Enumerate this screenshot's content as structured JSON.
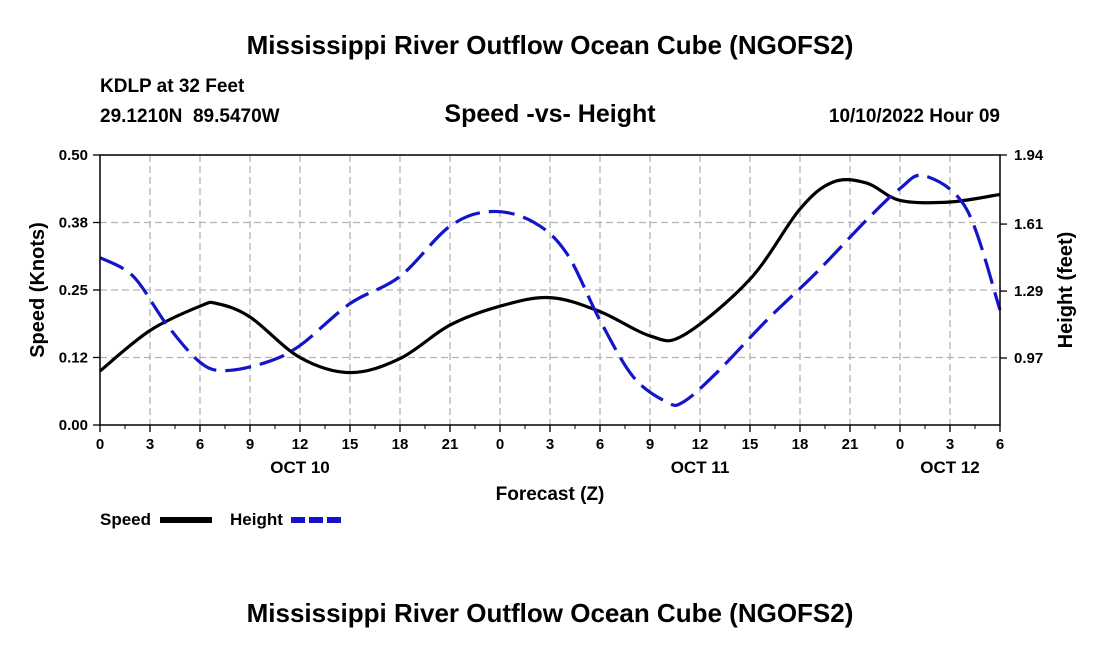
{
  "header": {
    "title_top": "Mississippi River Outflow Ocean Cube (NGOFS2)",
    "station": "KDLP at 32 Feet",
    "coordinates": "29.1210N  89.5470W",
    "subtitle": "Speed -vs- Height",
    "datetime": "10/10/2022 Hour 09",
    "title_bottom": "Mississippi River Outflow Ocean Cube (NGOFS2)"
  },
  "colors": {
    "speed": "#000000",
    "height": "#1414c8",
    "grid": "#b4b4b4"
  },
  "chart_data": {
    "type": "line",
    "title": "Speed -vs- Height",
    "xlabel": "Forecast (Z)",
    "ylabel": "Speed (Knots)",
    "y2label": "Height (feet)",
    "x_unit": "hours since 10/10/2022 00Z",
    "xlim": [
      0,
      54
    ],
    "ylim": [
      0,
      0.5
    ],
    "y2lim": [
      0.65,
      1.94
    ],
    "x_ticks": [
      0,
      3,
      6,
      9,
      12,
      15,
      18,
      21,
      24,
      27,
      30,
      33,
      36,
      39,
      42,
      45,
      48,
      51,
      54
    ],
    "x_tick_labels": [
      "0",
      "3",
      "6",
      "9",
      "12",
      "15",
      "18",
      "21",
      "0",
      "3",
      "6",
      "9",
      "12",
      "15",
      "18",
      "21",
      "0",
      "3",
      "6"
    ],
    "y_ticks": [
      0,
      0.125,
      0.25,
      0.375,
      0.5
    ],
    "y_tick_labels": [
      "0.00",
      "0.12",
      "0.25",
      "0.38",
      "0.50"
    ],
    "y2_ticks": [
      0.97,
      1.29,
      1.61,
      1.94
    ],
    "y2_tick_labels": [
      "0.97",
      "1.29",
      "1.61",
      "1.94"
    ],
    "date_labels": [
      {
        "label": "OCT 10",
        "x": 12
      },
      {
        "label": "OCT 11",
        "x": 36
      },
      {
        "label": "OCT 12",
        "x": 51
      }
    ],
    "grid": true,
    "legend": "bottom-left",
    "series": [
      {
        "name": "Speed",
        "axis": "left",
        "style": "solid",
        "x": [
          0,
          3,
          6,
          7,
          9,
          12,
          15,
          18,
          21,
          24,
          27,
          30,
          33,
          35,
          39,
          42,
          44,
          46,
          48,
          51,
          54
        ],
        "values": [
          0.1,
          0.175,
          0.22,
          0.225,
          0.2,
          0.125,
          0.097,
          0.123,
          0.185,
          0.22,
          0.236,
          0.21,
          0.165,
          0.166,
          0.27,
          0.4,
          0.45,
          0.448,
          0.416,
          0.413,
          0.427
        ]
      },
      {
        "name": "Height",
        "axis": "right",
        "style": "dashed",
        "x": [
          0,
          2,
          4,
          6,
          7.5,
          10,
          12,
          15,
          18,
          21,
          23.5,
          26,
          28,
          30,
          32,
          34,
          35,
          37,
          40,
          43,
          46,
          48,
          49.5,
          52,
          54
        ],
        "values": [
          1.45,
          1.36,
          1.13,
          0.95,
          0.91,
          0.95,
          1.03,
          1.23,
          1.36,
          1.6,
          1.67,
          1.62,
          1.47,
          1.15,
          0.88,
          0.76,
          0.76,
          0.9,
          1.15,
          1.38,
          1.63,
          1.78,
          1.84,
          1.68,
          1.2
        ]
      }
    ]
  }
}
